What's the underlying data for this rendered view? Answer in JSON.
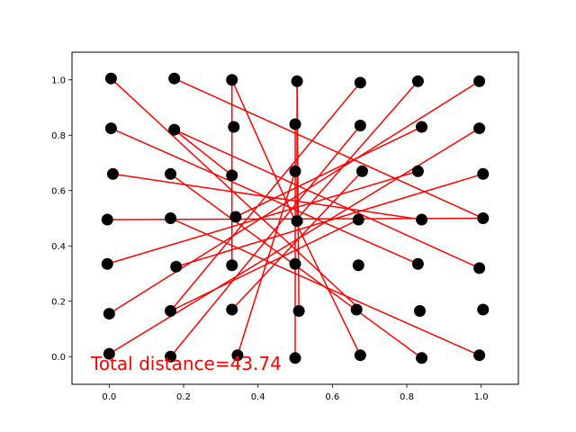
{
  "chart_data": {
    "type": "scatter",
    "title": "",
    "xlabel": "",
    "ylabel": "",
    "xlim": [
      -0.1,
      1.1
    ],
    "ylim": [
      -0.1,
      1.1
    ],
    "grid": false,
    "x_ticks": [
      0.0,
      0.2,
      0.4,
      0.6,
      0.8,
      1.0
    ],
    "y_ticks": [
      0.0,
      0.2,
      0.4,
      0.6,
      0.8,
      1.0
    ],
    "x_tick_labels": [
      "0.0",
      "0.2",
      "0.4",
      "0.6",
      "0.8",
      "1.0"
    ],
    "y_tick_labels": [
      "0.0",
      "0.2",
      "0.4",
      "0.6",
      "0.8",
      "1.0"
    ],
    "points": [
      [
        0.005,
        1.005
      ],
      [
        0.175,
        1.005
      ],
      [
        0.33,
        1.0
      ],
      [
        0.505,
        0.995
      ],
      [
        0.675,
        0.99
      ],
      [
        0.83,
        0.995
      ],
      [
        0.995,
        0.995
      ],
      [
        0.005,
        0.825
      ],
      [
        0.175,
        0.82
      ],
      [
        0.335,
        0.83
      ],
      [
        0.5,
        0.84
      ],
      [
        0.675,
        0.835
      ],
      [
        0.84,
        0.83
      ],
      [
        0.995,
        0.825
      ],
      [
        0.01,
        0.66
      ],
      [
        0.165,
        0.66
      ],
      [
        0.33,
        0.655
      ],
      [
        0.5,
        0.67
      ],
      [
        0.68,
        0.67
      ],
      [
        0.83,
        0.67
      ],
      [
        1.005,
        0.66
      ],
      [
        -0.005,
        0.495
      ],
      [
        0.165,
        0.5
      ],
      [
        0.34,
        0.505
      ],
      [
        0.505,
        0.49
      ],
      [
        0.67,
        0.495
      ],
      [
        0.84,
        0.495
      ],
      [
        1.005,
        0.5
      ],
      [
        -0.005,
        0.335
      ],
      [
        0.18,
        0.325
      ],
      [
        0.33,
        0.33
      ],
      [
        0.5,
        0.335
      ],
      [
        0.67,
        0.33
      ],
      [
        0.83,
        0.335
      ],
      [
        0.995,
        0.32
      ],
      [
        0.0,
        0.155
      ],
      [
        0.165,
        0.165
      ],
      [
        0.33,
        0.17
      ],
      [
        0.51,
        0.165
      ],
      [
        0.665,
        0.17
      ],
      [
        0.835,
        0.165
      ],
      [
        1.005,
        0.17
      ],
      [
        0.0,
        0.01
      ],
      [
        0.165,
        0.0
      ],
      [
        0.345,
        0.005
      ],
      [
        0.5,
        -0.005
      ],
      [
        0.675,
        0.005
      ],
      [
        0.84,
        -0.005
      ],
      [
        0.995,
        0.005
      ]
    ],
    "tour": [
      [
        [
          0.005,
          1.005
        ],
        [
          0.675,
          0.17
        ]
      ],
      [
        [
          0.175,
          1.005
        ],
        [
          1.005,
          0.5
        ]
      ],
      [
        [
          0.33,
          1.0
        ],
        [
          0.33,
          0.33
        ]
      ],
      [
        [
          0.33,
          1.0
        ],
        [
          0.5,
          0.49
        ]
      ],
      [
        [
          0.505,
          0.995
        ],
        [
          0.505,
          0.49
        ]
      ],
      [
        [
          0.505,
          0.995
        ],
        [
          0.51,
          0.165
        ]
      ],
      [
        [
          0.675,
          0.99
        ],
        [
          0.165,
          0.165
        ]
      ],
      [
        [
          0.83,
          0.995
        ],
        [
          0.5,
          0.49
        ]
      ],
      [
        [
          0.995,
          0.995
        ],
        [
          0.0,
          0.155
        ]
      ],
      [
        [
          0.005,
          0.825
        ],
        [
          0.83,
          0.335
        ]
      ],
      [
        [
          0.175,
          0.82
        ],
        [
          0.995,
          0.32
        ]
      ],
      [
        [
          0.175,
          0.82
        ],
        [
          0.33,
          0.655
        ]
      ],
      [
        [
          0.5,
          0.84
        ],
        [
          0.5,
          -0.005
        ]
      ],
      [
        [
          0.675,
          0.835
        ],
        [
          0.165,
          0.0
        ]
      ],
      [
        [
          0.84,
          0.83
        ],
        [
          0.34,
          0.505
        ]
      ],
      [
        [
          0.995,
          0.825
        ],
        [
          0.0,
          0.01
        ]
      ],
      [
        [
          0.01,
          0.66
        ],
        [
          0.84,
          0.495
        ]
      ],
      [
        [
          0.165,
          0.66
        ],
        [
          0.84,
          -0.005
        ]
      ],
      [
        [
          0.5,
          0.67
        ],
        [
          0.345,
          0.005
        ]
      ],
      [
        [
          0.68,
          0.67
        ],
        [
          0.33,
          0.17
        ]
      ],
      [
        [
          0.83,
          0.67
        ],
        [
          -0.005,
          0.335
        ]
      ],
      [
        [
          1.005,
          0.66
        ],
        [
          0.18,
          0.325
        ]
      ],
      [
        [
          -0.005,
          0.495
        ],
        [
          1.005,
          0.5
        ]
      ],
      [
        [
          0.165,
          0.5
        ],
        [
          0.995,
          0.005
        ]
      ],
      [
        [
          0.5,
          0.49
        ],
        [
          0.675,
          0.005
        ]
      ],
      [
        [
          0.67,
          0.495
        ],
        [
          0.165,
          0.165
        ]
      ]
    ],
    "annotation": "Total distance=43.74",
    "point_color": "#000000",
    "line_color": "#ff0000",
    "annotation_color": "#ff0000"
  }
}
